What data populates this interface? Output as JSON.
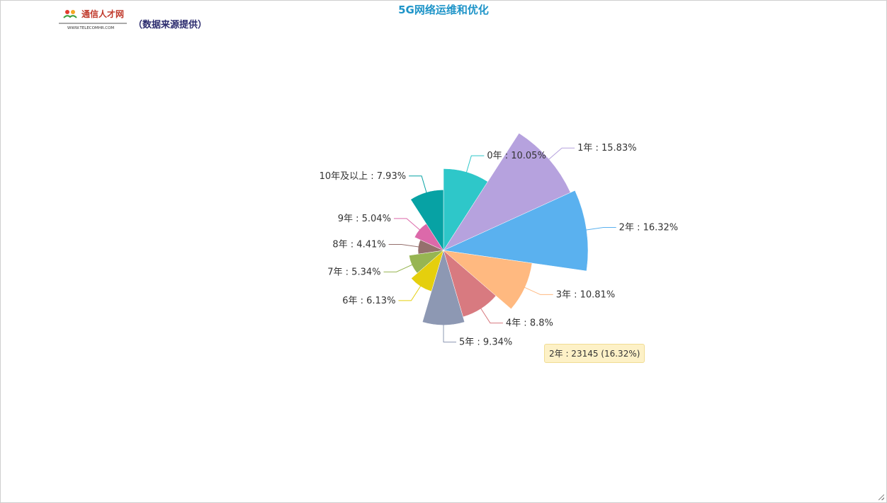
{
  "header": {
    "title": "5G网络运维和优化",
    "source_note": "（数据来源提供）",
    "logo_text": "通信人才网",
    "logo_url_text": "WWW.TELECOMHR.COM"
  },
  "chart_data": {
    "type": "pie",
    "variant": "rose",
    "title": "5G网络运维和优化",
    "series": [
      {
        "name": "0年",
        "label": "0年 : 10.05%",
        "percent": 10.05,
        "color": "#2ec7c9"
      },
      {
        "name": "1年",
        "label": "1年 : 15.83%",
        "percent": 15.83,
        "color": "#b6a2de"
      },
      {
        "name": "2年",
        "label": "2年 : 16.32%",
        "percent": 16.32,
        "color": "#5ab1ef"
      },
      {
        "name": "3年",
        "label": "3年 : 10.81%",
        "percent": 10.81,
        "color": "#ffb980"
      },
      {
        "name": "4年",
        "label": "4年 : 8.8%",
        "percent": 8.8,
        "color": "#d87a80"
      },
      {
        "name": "5年",
        "label": "5年 : 9.34%",
        "percent": 9.34,
        "color": "#8d98b3"
      },
      {
        "name": "6年",
        "label": "6年 : 6.13%",
        "percent": 6.13,
        "color": "#e5cf0d"
      },
      {
        "name": "7年",
        "label": "7年 : 5.34%",
        "percent": 5.34,
        "color": "#97b552"
      },
      {
        "name": "8年",
        "label": "8年 : 4.41%",
        "percent": 4.41,
        "color": "#95706d"
      },
      {
        "name": "9年",
        "label": "9年 : 5.04%",
        "percent": 5.04,
        "color": "#dc69aa"
      },
      {
        "name": "10年及以上",
        "label": "10年及以上 : 7.93%",
        "percent": 7.93,
        "color": "#07a2a4"
      }
    ],
    "tooltip": {
      "text": "2年 : 23145 (16.32%)",
      "category": "2年",
      "value": 23145,
      "percent": 16.32
    }
  }
}
